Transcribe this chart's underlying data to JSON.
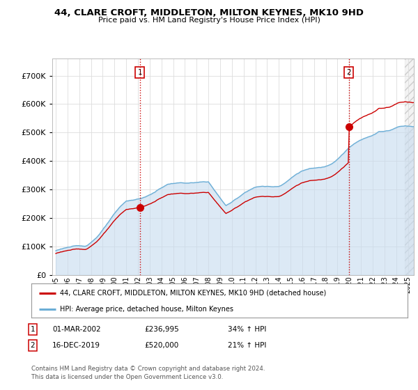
{
  "title": "44, CLARE CROFT, MIDDLETON, MILTON KEYNES, MK10 9HD",
  "subtitle": "Price paid vs. HM Land Registry's House Price Index (HPI)",
  "ylabel_ticks": [
    "£0",
    "£100K",
    "£200K",
    "£300K",
    "£400K",
    "£500K",
    "£600K",
    "£700K"
  ],
  "ytick_values": [
    0,
    100000,
    200000,
    300000,
    400000,
    500000,
    600000,
    700000
  ],
  "ylim": [
    0,
    760000
  ],
  "xlim_start": 1994.7,
  "xlim_end": 2025.5,
  "sale1_x": 2002.17,
  "sale1_y": 236995,
  "sale2_x": 2019.96,
  "sale2_y": 520000,
  "hpi_line_color": "#6baed6",
  "hpi_fill_color": "#c6dbef",
  "price_line_color": "#cc0000",
  "vline_color": "#cc0000",
  "legend_entry1": "44, CLARE CROFT, MIDDLETON, MILTON KEYNES, MK10 9HD (detached house)",
  "legend_entry2": "HPI: Average price, detached house, Milton Keynes",
  "table_row1": [
    "1",
    "01-MAR-2002",
    "£236,995",
    "34% ↑ HPI"
  ],
  "table_row2": [
    "2",
    "16-DEC-2019",
    "£520,000",
    "21% ↑ HPI"
  ],
  "footnote": "Contains HM Land Registry data © Crown copyright and database right 2024.\nThis data is licensed under the Open Government Licence v3.0.",
  "background_color": "#ffffff",
  "grid_color": "#dddddd",
  "future_cutoff": 2024.75
}
